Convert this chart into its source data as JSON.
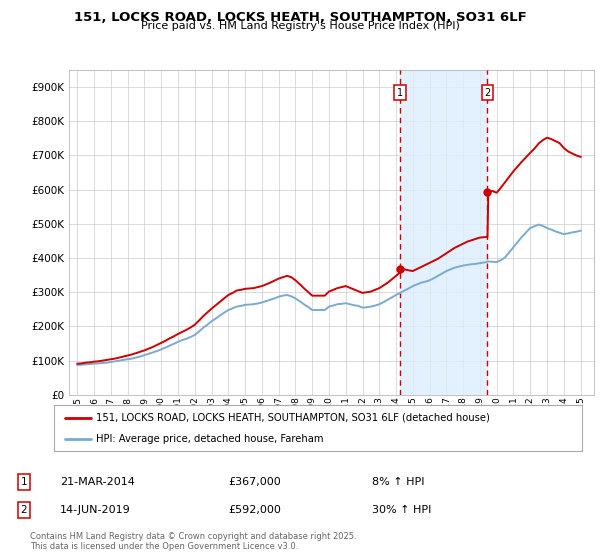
{
  "title_line1": "151, LOCKS ROAD, LOCKS HEATH, SOUTHAMPTON, SO31 6LF",
  "title_line2": "Price paid vs. HM Land Registry's House Price Index (HPI)",
  "background_color": "#ffffff",
  "plot_bg_color": "#ffffff",
  "grid_color": "#cccccc",
  "vline1_x": 2014.22,
  "vline2_x": 2019.45,
  "sale1_date": "21-MAR-2014",
  "sale1_price": "£367,000",
  "sale1_pct": "8% ↑ HPI",
  "sale2_date": "14-JUN-2019",
  "sale2_price": "£592,000",
  "sale2_pct": "30% ↑ HPI",
  "legend_label1": "151, LOCKS ROAD, LOCKS HEATH, SOUTHAMPTON, SO31 6LF (detached house)",
  "legend_label2": "HPI: Average price, detached house, Fareham",
  "footer": "Contains HM Land Registry data © Crown copyright and database right 2025.\nThis data is licensed under the Open Government Licence v3.0.",
  "line1_color": "#cc0000",
  "line2_color": "#7aabcf",
  "shade_color": "#ddeeff",
  "ylim": [
    0,
    950000
  ],
  "yticks": [
    0,
    100000,
    200000,
    300000,
    400000,
    500000,
    600000,
    700000,
    800000,
    900000
  ],
  "xlim": [
    1994.5,
    2025.8
  ],
  "sale1_price_y": 367000,
  "sale2_price_y": 592000,
  "hpi_x": [
    1995,
    1995.25,
    1995.5,
    1995.75,
    1996,
    1996.25,
    1996.5,
    1996.75,
    1997,
    1997.25,
    1997.5,
    1997.75,
    1998,
    1998.25,
    1998.5,
    1998.75,
    1999,
    1999.25,
    1999.5,
    1999.75,
    2000,
    2000.25,
    2000.5,
    2000.75,
    2001,
    2001.25,
    2001.5,
    2001.75,
    2002,
    2002.25,
    2002.5,
    2002.75,
    2003,
    2003.25,
    2003.5,
    2003.75,
    2004,
    2004.25,
    2004.5,
    2004.75,
    2005,
    2005.25,
    2005.5,
    2005.75,
    2006,
    2006.25,
    2006.5,
    2006.75,
    2007,
    2007.25,
    2007.5,
    2007.75,
    2008,
    2008.25,
    2008.5,
    2008.75,
    2009,
    2009.25,
    2009.5,
    2009.75,
    2010,
    2010.25,
    2010.5,
    2010.75,
    2011,
    2011.25,
    2011.5,
    2011.75,
    2012,
    2012.25,
    2012.5,
    2012.75,
    2013,
    2013.25,
    2013.5,
    2013.75,
    2014,
    2014.25,
    2014.5,
    2014.75,
    2015,
    2015.25,
    2015.5,
    2015.75,
    2016,
    2016.25,
    2016.5,
    2016.75,
    2017,
    2017.25,
    2017.5,
    2017.75,
    2018,
    2018.25,
    2018.5,
    2018.75,
    2019,
    2019.25,
    2019.5,
    2019.75,
    2020,
    2020.25,
    2020.5,
    2020.75,
    2021,
    2021.25,
    2021.5,
    2021.75,
    2022,
    2022.25,
    2022.5,
    2022.75,
    2023,
    2023.25,
    2023.5,
    2023.75,
    2024,
    2024.25,
    2024.5,
    2024.75,
    2025
  ],
  "hpi_y": [
    87000,
    88000,
    89000,
    90000,
    91000,
    92000,
    93000,
    94000,
    96000,
    98000,
    100000,
    102000,
    104000,
    106000,
    109000,
    112000,
    116000,
    120000,
    124000,
    128000,
    133000,
    138000,
    144000,
    149000,
    155000,
    160000,
    164000,
    169000,
    175000,
    185000,
    196000,
    205000,
    215000,
    223000,
    232000,
    240000,
    248000,
    253000,
    258000,
    260000,
    263000,
    264000,
    265000,
    267000,
    270000,
    274000,
    278000,
    282000,
    287000,
    290000,
    292000,
    288000,
    282000,
    274000,
    265000,
    257000,
    248000,
    248000,
    248000,
    248000,
    258000,
    261000,
    265000,
    266000,
    268000,
    265000,
    262000,
    260000,
    255000,
    256000,
    258000,
    261000,
    265000,
    271000,
    278000,
    285000,
    292000,
    298000,
    305000,
    311000,
    318000,
    323000,
    328000,
    331000,
    335000,
    341000,
    348000,
    355000,
    362000,
    367000,
    372000,
    375000,
    378000,
    380000,
    382000,
    383000,
    385000,
    387000,
    390000,
    389000,
    388000,
    394000,
    402000,
    417000,
    432000,
    447000,
    462000,
    475000,
    488000,
    493000,
    498000,
    494000,
    488000,
    483000,
    478000,
    474000,
    470000,
    472000,
    475000,
    477000,
    480000
  ],
  "prop_x": [
    1995,
    1995.25,
    1995.5,
    1995.75,
    1996,
    1996.25,
    1996.5,
    1996.75,
    1997,
    1997.25,
    1997.5,
    1997.75,
    1998,
    1998.25,
    1998.5,
    1998.75,
    1999,
    1999.25,
    1999.5,
    1999.75,
    2000,
    2000.25,
    2000.5,
    2000.75,
    2001,
    2001.25,
    2001.5,
    2001.75,
    2002,
    2002.25,
    2002.5,
    2002.75,
    2003,
    2003.25,
    2003.5,
    2003.75,
    2004,
    2004.25,
    2004.5,
    2004.75,
    2005,
    2005.25,
    2005.5,
    2005.75,
    2006,
    2006.25,
    2006.5,
    2006.75,
    2007,
    2007.25,
    2007.5,
    2007.75,
    2008,
    2008.25,
    2008.5,
    2008.75,
    2009,
    2009.25,
    2009.5,
    2009.75,
    2010,
    2010.25,
    2010.5,
    2010.75,
    2011,
    2011.25,
    2011.5,
    2011.75,
    2012,
    2012.25,
    2012.5,
    2012.75,
    2013,
    2013.25,
    2013.5,
    2013.75,
    2014,
    2014.22,
    2014.5,
    2014.75,
    2015,
    2015.25,
    2015.5,
    2015.75,
    2016,
    2016.25,
    2016.5,
    2016.75,
    2017,
    2017.25,
    2017.5,
    2017.75,
    2018,
    2018.25,
    2018.5,
    2018.75,
    2019,
    2019.25,
    2019.45,
    2019.5,
    2019.75,
    2020,
    2020.25,
    2020.5,
    2020.75,
    2021,
    2021.25,
    2021.5,
    2021.75,
    2022,
    2022.25,
    2022.5,
    2022.75,
    2023,
    2023.25,
    2023.5,
    2023.75,
    2024,
    2024.25,
    2024.5,
    2024.75,
    2025
  ],
  "prop_y": [
    91000,
    92000,
    94000,
    95000,
    97000,
    98000,
    100000,
    102000,
    104000,
    106000,
    109000,
    112000,
    115000,
    118000,
    122000,
    126000,
    130000,
    135000,
    140000,
    146000,
    152000,
    158000,
    165000,
    171000,
    178000,
    184000,
    190000,
    197000,
    205000,
    217000,
    230000,
    241000,
    252000,
    262000,
    272000,
    282000,
    292000,
    298000,
    305000,
    307000,
    310000,
    311000,
    312000,
    315000,
    318000,
    323000,
    328000,
    334000,
    340000,
    344000,
    348000,
    344000,
    335000,
    324000,
    312000,
    301000,
    290000,
    290000,
    290000,
    290000,
    302000,
    307000,
    312000,
    315000,
    318000,
    313000,
    308000,
    303000,
    298000,
    300000,
    302000,
    307000,
    312000,
    320000,
    328000,
    338000,
    348000,
    357000,
    367000,
    364000,
    362000,
    368000,
    374000,
    380000,
    386000,
    392000,
    398000,
    406000,
    414000,
    422000,
    430000,
    436000,
    442000,
    448000,
    452000,
    456000,
    460000,
    461000,
    462000,
    592000,
    596000,
    591000,
    606000,
    622000,
    638000,
    654000,
    668000,
    682000,
    695000,
    708000,
    720000,
    735000,
    745000,
    752000,
    748000,
    742000,
    736000,
    722000,
    712000,
    706000,
    700000,
    696000
  ]
}
